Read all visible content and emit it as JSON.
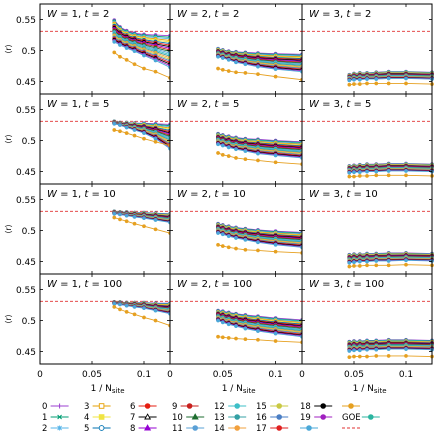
{
  "chart_data": {
    "type": "line",
    "rows": 4,
    "cols": 3,
    "xlim": [
      0,
      0.125
    ],
    "ylim": [
      0.43,
      0.575
    ],
    "xticks": [
      {
        "v": 0,
        "label": "0"
      },
      {
        "v": 0.05,
        "label": "0.05"
      },
      {
        "v": 0.1,
        "label": "0.1"
      }
    ],
    "yticks": [
      {
        "v": 0.45,
        "label": "0.45"
      },
      {
        "v": 0.5,
        "label": "0.5"
      },
      {
        "v": 0.55,
        "label": "0.55"
      }
    ],
    "ylabel": "⟨r⟩",
    "xlabel": "1 / N",
    "xlabel_sub": "site",
    "goe_value": 0.531,
    "x": {
      "W1": [
        0.0714,
        0.0769,
        0.0833,
        0.0909,
        0.1,
        0.1111,
        0.125
      ],
      "W2": [
        0.0455,
        0.05,
        0.0556,
        0.0625,
        0.0714,
        0.0833,
        0.1,
        0.125
      ],
      "W3": [
        0.0455,
        0.05,
        0.0556,
        0.0625,
        0.0714,
        0.0833,
        0.1,
        0.125
      ]
    },
    "panels": [
      {
        "row": 0,
        "col": 0,
        "title": "W = 1, t = 2",
        "W": "W1",
        "top": [
          0.549,
          0.538,
          0.532,
          0.528,
          0.526,
          0.525,
          0.524
        ],
        "bottom": [
          0.514,
          0.509,
          0.504,
          0.499,
          0.492,
          0.484,
          0.473
        ],
        "low": [
          0.497,
          0.49,
          0.485,
          0.478,
          0.471,
          0.466,
          0.456
        ]
      },
      {
        "row": 0,
        "col": 1,
        "title": "W = 2, t = 2",
        "W": "W2",
        "top": [
          0.503,
          0.501,
          0.499,
          0.498,
          0.497,
          0.496,
          0.495,
          0.494
        ],
        "bottom": [
          0.49,
          0.488,
          0.485,
          0.481,
          0.478,
          0.474,
          0.47,
          0.466
        ],
        "low": [
          0.471,
          0.469,
          0.467,
          0.465,
          0.464,
          0.462,
          0.458,
          0.453
        ]
      },
      {
        "row": 0,
        "col": 2,
        "title": "W = 3, t = 2",
        "W": "W3",
        "top": [
          0.461,
          0.463,
          0.464,
          0.464,
          0.465,
          0.466,
          0.466,
          0.465
        ],
        "bottom": [
          0.452,
          0.453,
          0.453,
          0.454,
          0.454,
          0.455,
          0.455,
          0.454
        ],
        "low": [
          0.445,
          0.446,
          0.446,
          0.447,
          0.447,
          0.447,
          0.447,
          0.446
        ]
      },
      {
        "row": 1,
        "col": 0,
        "title": "W = 1, t = 5",
        "W": "W1",
        "top": [
          0.531,
          0.529,
          0.529,
          0.528,
          0.528,
          0.527,
          0.526
        ],
        "bottom": [
          0.527,
          0.525,
          0.521,
          0.517,
          0.512,
          0.503,
          0.487
        ],
        "low": [
          0.517,
          0.515,
          0.512,
          0.508,
          0.503,
          0.498,
          0.492
        ]
      },
      {
        "row": 1,
        "col": 1,
        "title": "W = 2, t = 5",
        "W": "W2",
        "top": [
          0.511,
          0.509,
          0.507,
          0.505,
          0.503,
          0.502,
          0.5,
          0.498
        ],
        "bottom": [
          0.494,
          0.492,
          0.489,
          0.486,
          0.483,
          0.479,
          0.476,
          0.472
        ],
        "low": [
          0.48,
          0.477,
          0.475,
          0.472,
          0.47,
          0.468,
          0.465,
          0.462
        ]
      },
      {
        "row": 1,
        "col": 2,
        "title": "W = 3, t = 5",
        "W": "W3",
        "top": [
          0.459,
          0.46,
          0.461,
          0.462,
          0.462,
          0.463,
          0.463,
          0.462
        ],
        "bottom": [
          0.448,
          0.449,
          0.449,
          0.45,
          0.45,
          0.451,
          0.451,
          0.45
        ],
        "low": [
          0.442,
          0.442,
          0.443,
          0.443,
          0.444,
          0.444,
          0.444,
          0.443
        ]
      },
      {
        "row": 2,
        "col": 0,
        "title": "W = 1, t = 10",
        "W": "W1",
        "top": [
          0.531,
          0.53,
          0.53,
          0.529,
          0.529,
          0.528,
          0.527
        ],
        "bottom": [
          0.527,
          0.526,
          0.524,
          0.522,
          0.52,
          0.517,
          0.513
        ],
        "low": [
          0.521,
          0.518,
          0.515,
          0.511,
          0.507,
          0.502,
          0.496
        ]
      },
      {
        "row": 2,
        "col": 1,
        "title": "W = 2, t = 10",
        "W": "W2",
        "top": [
          0.511,
          0.509,
          0.507,
          0.505,
          0.503,
          0.501,
          0.499,
          0.497
        ],
        "bottom": [
          0.496,
          0.494,
          0.491,
          0.488,
          0.485,
          0.481,
          0.477,
          0.473
        ],
        "low": [
          0.477,
          0.475,
          0.473,
          0.471,
          0.469,
          0.468,
          0.466,
          0.464
        ]
      },
      {
        "row": 2,
        "col": 2,
        "title": "W = 3, t = 10",
        "W": "W3",
        "top": [
          0.461,
          0.462,
          0.462,
          0.463,
          0.463,
          0.464,
          0.464,
          0.463
        ],
        "bottom": [
          0.448,
          0.449,
          0.45,
          0.45,
          0.451,
          0.451,
          0.452,
          0.451
        ],
        "low": [
          0.442,
          0.443,
          0.443,
          0.444,
          0.444,
          0.444,
          0.445,
          0.444
        ]
      },
      {
        "row": 3,
        "col": 0,
        "title": "W = 1, t = 100",
        "W": "W1",
        "top": [
          0.53,
          0.53,
          0.529,
          0.529,
          0.529,
          0.528,
          0.528
        ],
        "bottom": [
          0.527,
          0.526,
          0.524,
          0.522,
          0.52,
          0.516,
          0.511
        ],
        "low": [
          0.522,
          0.518,
          0.514,
          0.51,
          0.505,
          0.5,
          0.492
        ]
      },
      {
        "row": 3,
        "col": 1,
        "title": "W = 2, t = 100",
        "W": "W2",
        "top": [
          0.516,
          0.515,
          0.513,
          0.511,
          0.509,
          0.507,
          0.504,
          0.501
        ],
        "bottom": [
          0.5,
          0.497,
          0.494,
          0.491,
          0.487,
          0.483,
          0.479,
          0.474
        ],
        "low": [
          0.474,
          0.473,
          0.472,
          0.471,
          0.47,
          0.469,
          0.467,
          0.465
        ]
      },
      {
        "row": 3,
        "col": 2,
        "title": "W = 3, t = 100",
        "W": "W3",
        "top": [
          0.466,
          0.467,
          0.467,
          0.468,
          0.468,
          0.469,
          0.469,
          0.468
        ],
        "bottom": [
          0.451,
          0.452,
          0.452,
          0.453,
          0.453,
          0.454,
          0.454,
          0.453
        ],
        "low": [
          0.441,
          0.442,
          0.442,
          0.442,
          0.443,
          0.443,
          0.443,
          0.442
        ]
      }
    ],
    "legend": [
      {
        "label": "0",
        "color": "#9b3fd0",
        "marker": "plus"
      },
      {
        "label": "1",
        "color": "#009e73",
        "marker": "cross"
      },
      {
        "label": "2",
        "color": "#56b4e9",
        "marker": "star"
      },
      {
        "label": "3",
        "color": "#e69f00",
        "marker": "square"
      },
      {
        "label": "4",
        "color": "#f0e442",
        "marker": "fsquare"
      },
      {
        "label": "5",
        "color": "#0072b2",
        "marker": "circle"
      },
      {
        "label": "6",
        "color": "#e51e10",
        "marker": "fcircle"
      },
      {
        "label": "7",
        "color": "#000000",
        "marker": "triangle"
      },
      {
        "label": "8",
        "color": "#9400d3",
        "marker": "ftriangle"
      },
      {
        "label": "9",
        "color": "#c8201e",
        "marker": "fcircle"
      },
      {
        "label": "10",
        "color": "#1d6d2f",
        "marker": "ftriangle"
      },
      {
        "label": "11",
        "color": "#5aa0d6",
        "marker": "fcircle"
      },
      {
        "label": "12",
        "color": "#3dbfc7",
        "marker": "fcircle"
      },
      {
        "label": "13",
        "color": "#34a0a4",
        "marker": "fcircle"
      },
      {
        "label": "14",
        "color": "#f2a03d",
        "marker": "fcircle"
      },
      {
        "label": "15",
        "color": "#c9c943",
        "marker": "fcircle"
      },
      {
        "label": "16",
        "color": "#4a7ec4",
        "marker": "fcircle"
      },
      {
        "label": "17",
        "color": "#e02020",
        "marker": "fcircle"
      },
      {
        "label": "18",
        "color": "#000000",
        "marker": "fcircle"
      },
      {
        "label": "19",
        "color": "#a020c0",
        "marker": "fcircle"
      },
      {
        "label": "",
        "color": "#4aa8d8",
        "marker": "fcircle"
      },
      {
        "label": "",
        "color": "#e6a020",
        "marker": "fcircle"
      },
      {
        "label": "GOE",
        "color": "#2bb5a0",
        "marker": "fcircle"
      },
      {
        "label": "",
        "color": "#e03030",
        "marker": "dashed"
      }
    ]
  }
}
